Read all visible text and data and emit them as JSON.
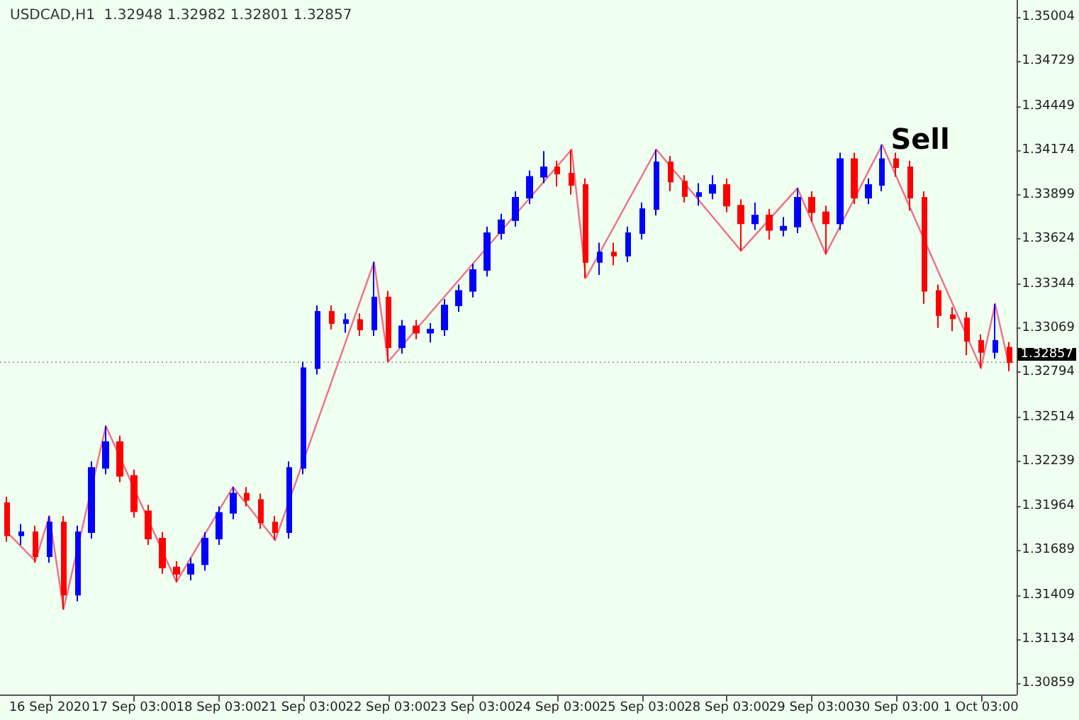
{
  "chart_data": {
    "type": "candlestick",
    "title": "USDCAD,H1  1.32948 1.32982 1.32801 1.32857",
    "categories": [
      null,
      null,
      null,
      "16 Sep 2020",
      null,
      null,
      null,
      null,
      null,
      "17 Sep 03:00",
      null,
      null,
      null,
      null,
      null,
      "18 Sep 03:00",
      null,
      null,
      null,
      null,
      null,
      "21 Sep 03:00",
      null,
      null,
      null,
      null,
      null,
      "22 Sep 03:00",
      null,
      null,
      null,
      null,
      null,
      "23 Sep 03:00",
      null,
      null,
      null,
      null,
      null,
      "24 Sep 03:00",
      null,
      null,
      null,
      null,
      null,
      "25 Sep 03:00",
      null,
      null,
      null,
      null,
      null,
      "28 Sep 03:00",
      null,
      null,
      null,
      null,
      null,
      "29 Sep 03:00",
      null,
      null,
      null,
      null,
      null,
      "30 Sep 03:00",
      null,
      null,
      null,
      null,
      null,
      "1 Oct 03:00",
      null,
      null
    ],
    "series": [
      {
        "type": "candlestick",
        "ohlc": [
          [
            1.3198,
            1.3202,
            1.3174,
            1.3178
          ],
          [
            1.3178,
            1.3185,
            1.3172,
            1.318
          ],
          [
            1.318,
            1.3184,
            1.3161,
            1.3165
          ],
          [
            1.3165,
            1.319,
            1.3161,
            1.3186
          ],
          [
            1.3186,
            1.319,
            1.3132,
            1.3141
          ],
          [
            1.3141,
            1.3184,
            1.3137,
            1.318
          ],
          [
            1.318,
            1.3224,
            1.3176,
            1.322
          ],
          [
            1.322,
            1.3246,
            1.3216,
            1.3236
          ],
          [
            1.3236,
            1.324,
            1.3211,
            1.3215
          ],
          [
            1.3215,
            1.3219,
            1.3189,
            1.3193
          ],
          [
            1.3193,
            1.3197,
            1.3172,
            1.3176
          ],
          [
            1.3176,
            1.318,
            1.3154,
            1.3158
          ],
          [
            1.3158,
            1.3162,
            1.3149,
            1.3154
          ],
          [
            1.3154,
            1.3164,
            1.315,
            1.316
          ],
          [
            1.316,
            1.318,
            1.3156,
            1.3176
          ],
          [
            1.3176,
            1.3196,
            1.3172,
            1.3192
          ],
          [
            1.3192,
            1.3208,
            1.3188,
            1.3204
          ],
          [
            1.3204,
            1.3208,
            1.3196,
            1.32
          ],
          [
            1.32,
            1.3204,
            1.3182,
            1.3186
          ],
          [
            1.3186,
            1.319,
            1.3175,
            1.318
          ],
          [
            1.318,
            1.3224,
            1.3176,
            1.322
          ],
          [
            1.322,
            1.3286,
            1.3216,
            1.3282
          ],
          [
            1.3282,
            1.3321,
            1.3278,
            1.3317
          ],
          [
            1.3317,
            1.3321,
            1.3306,
            1.331
          ],
          [
            1.331,
            1.3316,
            1.3304,
            1.3312
          ],
          [
            1.3312,
            1.3316,
            1.3302,
            1.3306
          ],
          [
            1.3306,
            1.3348,
            1.3302,
            1.3326
          ],
          [
            1.3326,
            1.333,
            1.3286,
            1.3295
          ],
          [
            1.3295,
            1.3312,
            1.3291,
            1.3308
          ],
          [
            1.3308,
            1.3312,
            1.33,
            1.3304
          ],
          [
            1.3304,
            1.331,
            1.3298,
            1.3306
          ],
          [
            1.3306,
            1.3325,
            1.3302,
            1.3321
          ],
          [
            1.3321,
            1.3334,
            1.3317,
            1.333
          ],
          [
            1.333,
            1.3347,
            1.3326,
            1.3343
          ],
          [
            1.3343,
            1.337,
            1.3339,
            1.3366
          ],
          [
            1.3366,
            1.3378,
            1.3362,
            1.3374
          ],
          [
            1.3374,
            1.3392,
            1.337,
            1.3388
          ],
          [
            1.3388,
            1.3405,
            1.3384,
            1.3401
          ],
          [
            1.3401,
            1.3417,
            1.3397,
            1.3407
          ],
          [
            1.3407,
            1.3411,
            1.3395,
            1.3403
          ],
          [
            1.3403,
            1.3418,
            1.339,
            1.3396
          ],
          [
            1.3396,
            1.34,
            1.3338,
            1.3348
          ],
          [
            1.3348,
            1.336,
            1.334,
            1.3354
          ],
          [
            1.3354,
            1.336,
            1.3346,
            1.3352
          ],
          [
            1.3352,
            1.337,
            1.3348,
            1.3366
          ],
          [
            1.3366,
            1.3385,
            1.3362,
            1.3381
          ],
          [
            1.3381,
            1.3418,
            1.3377,
            1.341
          ],
          [
            1.341,
            1.3414,
            1.3392,
            1.3398
          ],
          [
            1.3398,
            1.3402,
            1.3385,
            1.3389
          ],
          [
            1.3389,
            1.3397,
            1.3383,
            1.3391
          ],
          [
            1.3391,
            1.3402,
            1.3387,
            1.3396
          ],
          [
            1.3396,
            1.34,
            1.3379,
            1.3383
          ],
          [
            1.3383,
            1.3387,
            1.3355,
            1.3372
          ],
          [
            1.3372,
            1.3385,
            1.3368,
            1.3377
          ],
          [
            1.3377,
            1.3381,
            1.3362,
            1.3368
          ],
          [
            1.3368,
            1.3376,
            1.3364,
            1.337
          ],
          [
            1.337,
            1.3394,
            1.3366,
            1.3388
          ],
          [
            1.3388,
            1.3392,
            1.3373,
            1.3379
          ],
          [
            1.3379,
            1.3383,
            1.3353,
            1.3372
          ],
          [
            1.3372,
            1.3416,
            1.3368,
            1.3412
          ],
          [
            1.3412,
            1.3416,
            1.3384,
            1.3388
          ],
          [
            1.3388,
            1.34,
            1.3384,
            1.3396
          ],
          [
            1.3396,
            1.3421,
            1.3392,
            1.3412
          ],
          [
            1.3412,
            1.3416,
            1.3401,
            1.3407
          ],
          [
            1.3407,
            1.3411,
            1.338,
            1.3388
          ],
          [
            1.3388,
            1.3392,
            1.3322,
            1.333
          ],
          [
            1.333,
            1.3334,
            1.3307,
            1.3315
          ],
          [
            1.3315,
            1.332,
            1.3305,
            1.3313
          ],
          [
            1.3313,
            1.3317,
            1.329,
            1.3299
          ],
          [
            1.3299,
            1.3303,
            1.3282,
            1.3292
          ],
          [
            1.3292,
            1.3322,
            1.3288,
            1.3299
          ],
          [
            1.32948,
            1.32982,
            1.32801,
            1.32857
          ]
        ],
        "colors": [
          "#ff0000",
          "#0000ff",
          "#ff0000",
          "#0000ff",
          "#ff0000",
          "#0000ff",
          "#0000ff",
          "#0000ff",
          "#ff0000",
          "#ff0000",
          "#ff0000",
          "#ff0000",
          "#ff0000",
          "#0000ff",
          "#0000ff",
          "#0000ff",
          "#0000ff",
          "#ff0000",
          "#ff0000",
          "#ff0000",
          "#0000ff",
          "#0000ff",
          "#0000ff",
          "#ff0000",
          "#0000ff",
          "#ff0000",
          "#0000ff",
          "#ff0000",
          "#0000ff",
          "#ff0000",
          "#0000ff",
          "#0000ff",
          "#0000ff",
          "#0000ff",
          "#0000ff",
          "#0000ff",
          "#0000ff",
          "#0000ff",
          "#0000ff",
          "#ff0000",
          "#ff0000",
          "#ff0000",
          "#0000ff",
          "#ff0000",
          "#0000ff",
          "#0000ff",
          "#0000ff",
          "#ff0000",
          "#ff0000",
          "#0000ff",
          "#0000ff",
          "#ff0000",
          "#ff0000",
          "#0000ff",
          "#ff0000",
          "#0000ff",
          "#0000ff",
          "#ff0000",
          "#ff0000",
          "#0000ff",
          "#ff0000",
          "#0000ff",
          "#0000ff",
          "#ff0000",
          "#ff0000",
          "#ff0000",
          "#ff0000",
          "#ff0000",
          "#ff0000",
          "#ff0000",
          "#0000ff",
          "#ff0000"
        ]
      },
      {
        "type": "line",
        "color": "#f07088",
        "values": [
          1.318,
          null,
          1.3162,
          1.319,
          1.3132,
          null,
          null,
          1.3246,
          null,
          null,
          null,
          null,
          1.3149,
          null,
          null,
          null,
          1.3208,
          null,
          null,
          1.3175,
          null,
          null,
          null,
          null,
          null,
          null,
          1.3348,
          1.3286,
          null,
          null,
          null,
          null,
          null,
          null,
          null,
          null,
          null,
          null,
          null,
          null,
          1.3418,
          1.3338,
          null,
          null,
          null,
          null,
          1.3418,
          null,
          null,
          null,
          null,
          null,
          1.3355,
          null,
          null,
          null,
          1.3394,
          null,
          1.3353,
          null,
          null,
          null,
          1.3421,
          null,
          null,
          null,
          null,
          null,
          null,
          1.3282,
          1.3322,
          1.3283
        ]
      }
    ],
    "ylim": [
      1.3079,
      1.3511
    ],
    "yticks": [
      1.35004,
      1.34729,
      1.34449,
      1.34174,
      1.33899,
      1.33624,
      1.33344,
      1.33069,
      1.32794,
      1.32514,
      1.32239,
      1.31964,
      1.31689,
      1.31409,
      1.31134,
      1.30859
    ],
    "ref_lines": [
      {
        "axis": "y",
        "value": 1.32857,
        "label": "1.32857",
        "color": "#000000"
      }
    ],
    "annotations": [
      "Sell"
    ],
    "grid": false
  }
}
